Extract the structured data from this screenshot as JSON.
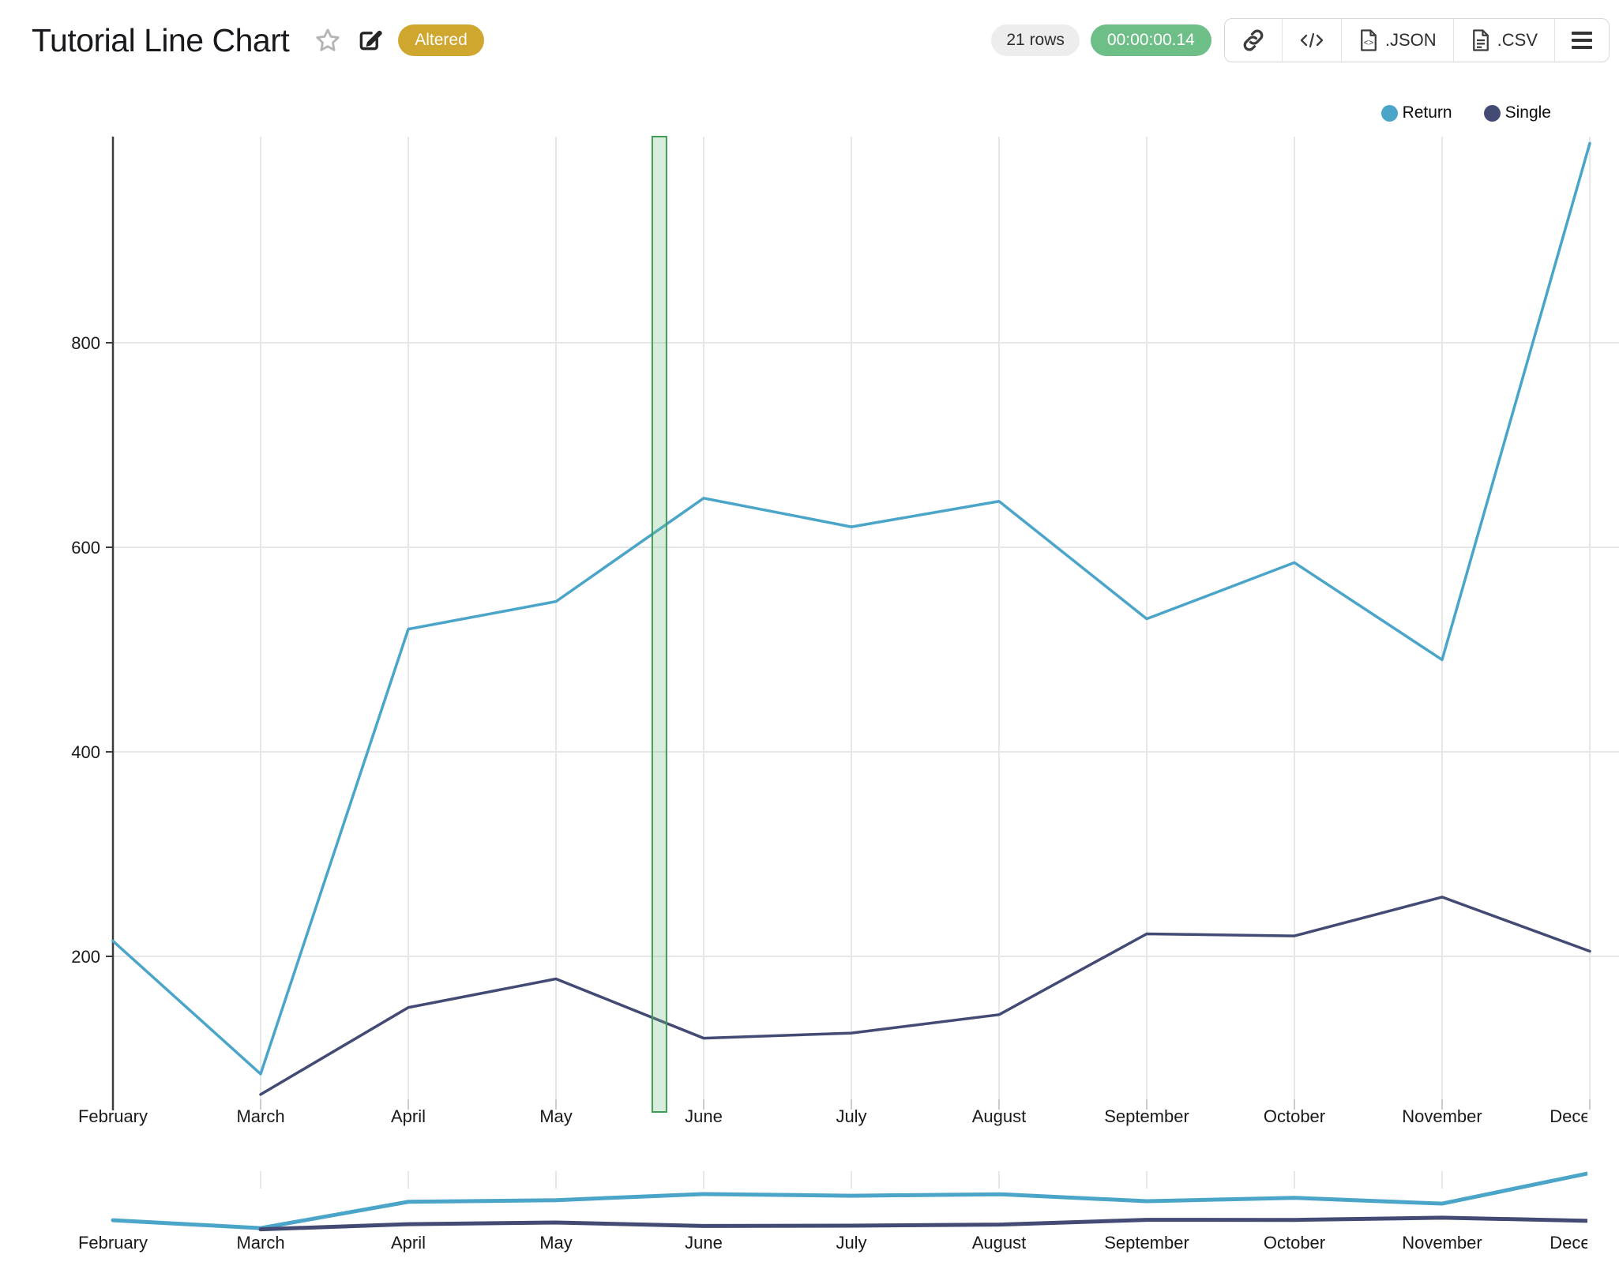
{
  "header": {
    "title": "Tutorial Line Chart",
    "status_badge": "Altered"
  },
  "toolbar": {
    "row_count": "21 rows",
    "elapsed_time": "00:00:00.14",
    "export_json_label": ".JSON",
    "export_csv_label": ".CSV"
  },
  "colors": {
    "altered_badge": "#cfa62e",
    "timer_badge": "#6ebe88",
    "row_pill": "#ededed",
    "axis": "#3b3b3b",
    "grid": "#e7e7e7",
    "tick": "#cccccc",
    "label_text": "#1a1a1a"
  },
  "chart_data": {
    "type": "line",
    "categories": [
      "February",
      "March",
      "April",
      "May",
      "June",
      "July",
      "August",
      "September",
      "October",
      "November",
      "December"
    ],
    "series": [
      {
        "name": "Return",
        "color": "#4aa5c8",
        "values": [
          215,
          85,
          520,
          547,
          648,
          620,
          645,
          530,
          585,
          490,
          995
        ]
      },
      {
        "name": "Single",
        "color": "#434a74",
        "values": [
          null,
          65,
          150,
          178,
          120,
          125,
          143,
          222,
          220,
          258,
          205
        ]
      }
    ],
    "y_ticks": [
      200,
      400,
      600,
      800
    ],
    "ylim": [
      60,
      1000
    ],
    "xlabel": "",
    "ylabel": "",
    "grid": true,
    "legend_position": "top-right",
    "highlight_band": {
      "category_position": 3.7,
      "between": "May and June",
      "border_color": "#3e9c57",
      "fill_color": "rgba(119,191,130,0.28)"
    },
    "navigator": {
      "shown": true,
      "description": "mini overview line chart with same series and repeated month labels"
    }
  }
}
